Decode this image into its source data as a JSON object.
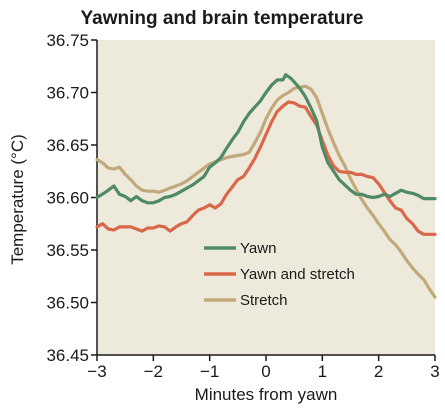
{
  "chart_data": {
    "type": "line",
    "title": "Yawning and brain temperature",
    "xlabel": "Minutes from yawn",
    "ylabel": "Temperature (°C)",
    "xlim": [
      -3,
      3
    ],
    "ylim": [
      36.45,
      36.75
    ],
    "x_ticks": [
      -3,
      -2,
      -1,
      0,
      1,
      2,
      3
    ],
    "x_tick_labels": [
      "−3",
      "−2",
      "−1",
      "0",
      "1",
      "2",
      "3"
    ],
    "y_ticks": [
      36.45,
      36.5,
      36.55,
      36.6,
      36.65,
      36.7,
      36.75
    ],
    "y_tick_labels": [
      "36.45",
      "36.50",
      "36.55",
      "36.60",
      "36.65",
      "36.70",
      "36.75"
    ],
    "grid": false,
    "legend_position": "center",
    "colors": {
      "plot_background": "#ede9db",
      "yawn": "#4e8a63",
      "yawn_and_stretch": "#d9674a",
      "stretch": "#c2a87b"
    },
    "series": [
      {
        "name": "Yawn",
        "color": "#4e8a63",
        "x": [
          -3.0,
          -2.85,
          -2.7,
          -2.6,
          -2.5,
          -2.4,
          -2.3,
          -2.2,
          -2.1,
          -2.0,
          -1.9,
          -1.8,
          -1.7,
          -1.6,
          -1.5,
          -1.4,
          -1.3,
          -1.2,
          -1.1,
          -1.0,
          -0.9,
          -0.8,
          -0.7,
          -0.6,
          -0.5,
          -0.4,
          -0.3,
          -0.2,
          -0.1,
          0.0,
          0.1,
          0.2,
          0.3,
          0.35,
          0.45,
          0.55,
          0.6,
          0.7,
          0.8,
          0.9,
          1.0,
          1.1,
          1.2,
          1.3,
          1.4,
          1.5,
          1.6,
          1.7,
          1.8,
          1.9,
          2.0,
          2.1,
          2.2,
          2.3,
          2.4,
          2.5,
          2.6,
          2.7,
          2.8,
          2.9,
          3.0
        ],
        "y": [
          36.6,
          36.605,
          36.611,
          36.603,
          36.601,
          36.597,
          36.601,
          36.597,
          36.595,
          36.595,
          36.597,
          36.6,
          36.601,
          36.603,
          36.606,
          36.609,
          36.612,
          36.616,
          36.62,
          36.629,
          36.633,
          36.638,
          36.647,
          36.655,
          36.662,
          36.672,
          36.68,
          36.686,
          36.692,
          36.7,
          36.707,
          36.712,
          36.712,
          36.717,
          36.713,
          36.707,
          36.704,
          36.696,
          36.685,
          36.673,
          36.648,
          36.633,
          36.625,
          36.617,
          36.612,
          36.607,
          36.603,
          36.603,
          36.601,
          36.6,
          36.601,
          36.603,
          36.601,
          36.604,
          36.607,
          36.605,
          36.604,
          36.602,
          36.599,
          36.599,
          36.599
        ]
      },
      {
        "name": "Yawn and stretch",
        "color": "#d9674a",
        "x": [
          -3.0,
          -2.9,
          -2.8,
          -2.7,
          -2.6,
          -2.5,
          -2.4,
          -2.3,
          -2.2,
          -2.1,
          -2.0,
          -1.9,
          -1.8,
          -1.7,
          -1.6,
          -1.5,
          -1.4,
          -1.3,
          -1.2,
          -1.1,
          -1.0,
          -0.9,
          -0.8,
          -0.7,
          -0.6,
          -0.5,
          -0.4,
          -0.3,
          -0.2,
          -0.1,
          0.0,
          0.1,
          0.2,
          0.3,
          0.4,
          0.5,
          0.6,
          0.7,
          0.8,
          0.9,
          1.0,
          1.1,
          1.2,
          1.3,
          1.4,
          1.5,
          1.6,
          1.7,
          1.8,
          1.9,
          2.0,
          2.1,
          2.2,
          2.3,
          2.4,
          2.5,
          2.6,
          2.7,
          2.8,
          2.9,
          3.0
        ],
        "y": [
          36.572,
          36.575,
          36.57,
          36.569,
          36.572,
          36.572,
          36.572,
          36.57,
          36.568,
          36.571,
          36.571,
          36.573,
          36.572,
          36.568,
          36.572,
          36.575,
          36.577,
          36.583,
          36.588,
          36.59,
          36.593,
          36.59,
          36.594,
          36.603,
          36.61,
          36.617,
          36.62,
          36.628,
          36.637,
          36.648,
          36.66,
          36.672,
          36.682,
          36.687,
          36.691,
          36.69,
          36.687,
          36.686,
          36.677,
          36.669,
          36.654,
          36.64,
          36.63,
          36.625,
          36.624,
          36.624,
          36.622,
          36.622,
          36.62,
          36.619,
          36.613,
          36.605,
          36.597,
          36.59,
          36.588,
          36.58,
          36.575,
          36.568,
          36.565,
          36.565,
          36.565
        ]
      },
      {
        "name": "Stretch",
        "color": "#c2a87b",
        "x": [
          -3.0,
          -2.9,
          -2.8,
          -2.7,
          -2.6,
          -2.5,
          -2.4,
          -2.3,
          -2.2,
          -2.1,
          -2.0,
          -1.9,
          -1.8,
          -1.7,
          -1.6,
          -1.5,
          -1.4,
          -1.3,
          -1.2,
          -1.1,
          -1.0,
          -0.9,
          -0.8,
          -0.7,
          -0.6,
          -0.5,
          -0.4,
          -0.3,
          -0.2,
          -0.1,
          0.0,
          0.1,
          0.2,
          0.3,
          0.4,
          0.5,
          0.6,
          0.7,
          0.8,
          0.9,
          1.0,
          1.1,
          1.2,
          1.3,
          1.4,
          1.5,
          1.6,
          1.7,
          1.8,
          1.9,
          2.0,
          2.1,
          2.2,
          2.3,
          2.4,
          2.5,
          2.6,
          2.7,
          2.8,
          2.9,
          3.0
        ],
        "y": [
          36.636,
          36.633,
          36.628,
          36.627,
          36.629,
          36.622,
          36.617,
          36.611,
          36.607,
          36.606,
          36.606,
          36.605,
          36.607,
          36.609,
          36.611,
          36.613,
          36.616,
          36.62,
          36.624,
          36.628,
          36.632,
          36.634,
          36.636,
          36.638,
          36.639,
          36.64,
          36.641,
          36.643,
          36.652,
          36.662,
          36.675,
          36.685,
          36.693,
          36.697,
          36.7,
          36.704,
          36.705,
          36.706,
          36.703,
          36.695,
          36.68,
          36.665,
          36.652,
          36.64,
          36.63,
          36.618,
          36.608,
          36.598,
          36.59,
          36.583,
          36.575,
          36.568,
          36.56,
          36.555,
          36.548,
          36.54,
          36.533,
          36.527,
          36.522,
          36.513,
          36.505
        ]
      }
    ]
  }
}
